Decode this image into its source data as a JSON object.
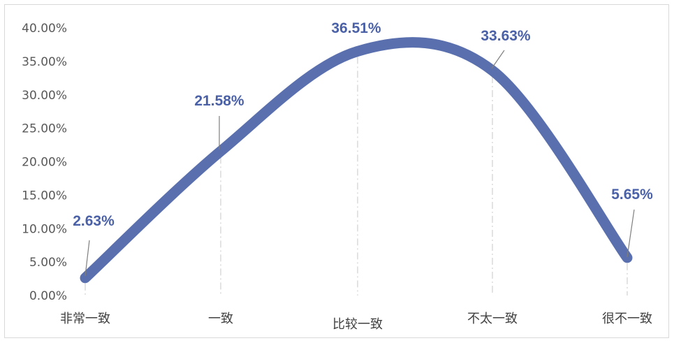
{
  "chart_data": {
    "type": "line",
    "title": "",
    "xlabel": "",
    "ylabel": "",
    "categories": [
      "非常一致",
      "一致",
      "比较一致",
      "不太一致",
      "很不一致"
    ],
    "series": [
      {
        "values": [
          2.63,
          21.58,
          36.51,
          33.63,
          5.65
        ]
      }
    ],
    "data_labels": [
      "2.63%",
      "21.58%",
      "36.51%",
      "33.63%",
      "5.65%"
    ],
    "y_ticks": [
      "0.00%",
      "5.00%",
      "10.00%",
      "15.00%",
      "20.00%",
      "25.00%",
      "30.00%",
      "35.00%",
      "40.00%"
    ],
    "ylim": [
      0,
      40
    ],
    "smooth": true,
    "grid": false,
    "legend": "none",
    "colors": {
      "series": "#5a6fae",
      "label": "#4a61a8",
      "tick": "#595959",
      "leader": "#7f7f7f"
    }
  }
}
